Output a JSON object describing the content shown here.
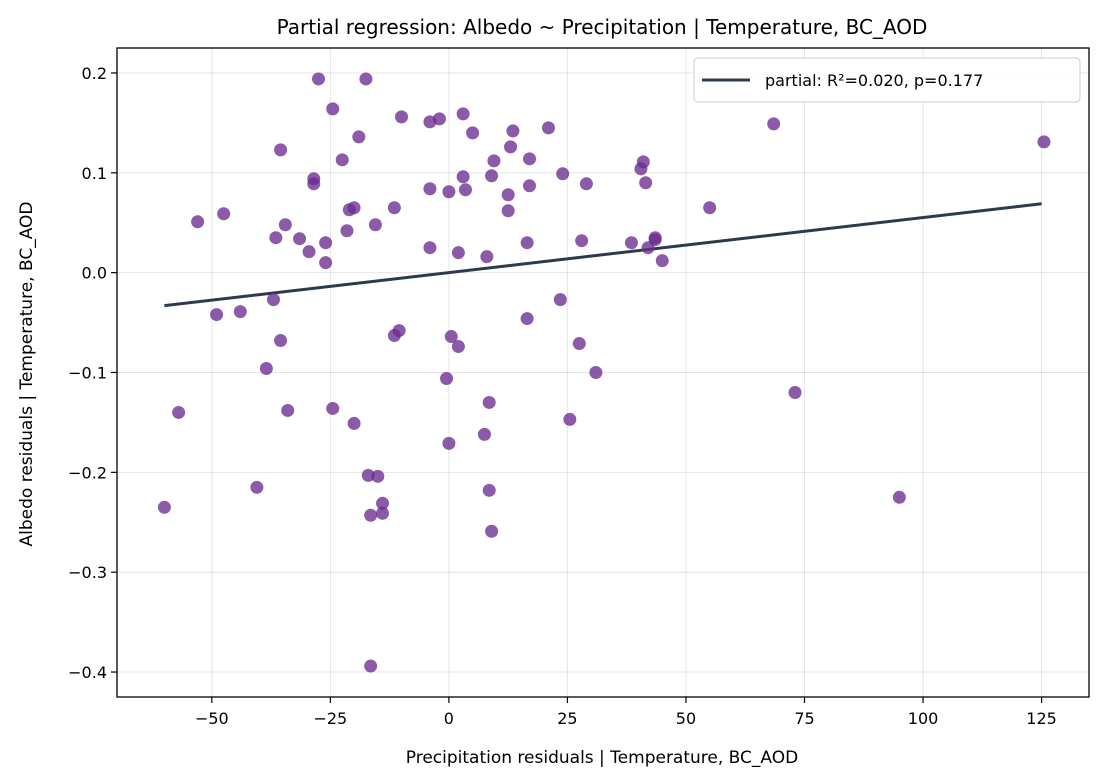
{
  "chart_data": {
    "type": "scatter",
    "title": "Partial regression: Albedo ~ Precipitation | Temperature, BC_AOD",
    "xlabel": "Precipitation residuals | Temperature, BC_AOD",
    "ylabel": "Albedo residuals | Temperature, BC_AOD",
    "xlim": [
      -70,
      135
    ],
    "ylim": [
      -0.425,
      0.225
    ],
    "xticks": [
      -50,
      -25,
      0,
      25,
      50,
      75,
      100,
      125
    ],
    "yticks": [
      -0.4,
      -0.3,
      -0.2,
      -0.1,
      0.0,
      0.1,
      0.2
    ],
    "xtick_labels": [
      "−50",
      "−25",
      "0",
      "25",
      "50",
      "75",
      "100",
      "125"
    ],
    "ytick_labels": [
      "−0.4",
      "−0.3",
      "−0.2",
      "−0.1",
      "0.0",
      "0.1",
      "0.2"
    ],
    "grid": true,
    "legend_position": "top-right",
    "point_color": "#6a2c8f",
    "line_color": "#2d3a4a",
    "fit_line": {
      "label": "partial: R²=0.020, p=0.177",
      "x": [
        -60,
        125
      ],
      "y": [
        -0.033,
        0.069
      ]
    },
    "points": [
      [
        -27.5,
        0.194
      ],
      [
        -17.5,
        0.194
      ],
      [
        -24.5,
        0.164
      ],
      [
        -19,
        0.136
      ],
      [
        -35.5,
        0.123
      ],
      [
        -22.5,
        0.113
      ],
      [
        -10,
        0.156
      ],
      [
        -4,
        0.151
      ],
      [
        -2,
        0.154
      ],
      [
        3,
        0.159
      ],
      [
        5,
        0.14
      ],
      [
        13.5,
        0.142
      ],
      [
        21,
        0.145
      ],
      [
        13,
        0.126
      ],
      [
        9.5,
        0.112
      ],
      [
        17,
        0.114
      ],
      [
        3,
        0.096
      ],
      [
        9,
        0.097
      ],
      [
        -28.5,
        0.094
      ],
      [
        -28.5,
        0.089
      ],
      [
        -4,
        0.084
      ],
      [
        0,
        0.081
      ],
      [
        3.5,
        0.083
      ],
      [
        12.5,
        0.078
      ],
      [
        17,
        0.087
      ],
      [
        24,
        0.099
      ],
      [
        29,
        0.089
      ],
      [
        41,
        0.111
      ],
      [
        40.5,
        0.104
      ],
      [
        41.5,
        0.09
      ],
      [
        -11.5,
        0.065
      ],
      [
        -21,
        0.063
      ],
      [
        -20,
        0.065
      ],
      [
        12.5,
        0.062
      ],
      [
        55,
        0.065
      ],
      [
        68.5,
        0.149
      ],
      [
        125.5,
        0.131
      ],
      [
        -53,
        0.051
      ],
      [
        -47.5,
        0.059
      ],
      [
        -34.5,
        0.048
      ],
      [
        -15.5,
        0.048
      ],
      [
        -36.5,
        0.035
      ],
      [
        -31.5,
        0.034
      ],
      [
        -21.5,
        0.042
      ],
      [
        -26,
        0.03
      ],
      [
        -29.5,
        0.021
      ],
      [
        -26,
        0.01
      ],
      [
        -4,
        0.025
      ],
      [
        2,
        0.02
      ],
      [
        8,
        0.016
      ],
      [
        16.5,
        0.03
      ],
      [
        28,
        0.032
      ],
      [
        38.5,
        0.03
      ],
      [
        43.5,
        0.035
      ],
      [
        43.5,
        0.033
      ],
      [
        42,
        0.025
      ],
      [
        45,
        0.012
      ],
      [
        -37,
        -0.027
      ],
      [
        -49,
        -0.042
      ],
      [
        -44,
        -0.039
      ],
      [
        23.5,
        -0.027
      ],
      [
        16.5,
        -0.046
      ],
      [
        -35.5,
        -0.068
      ],
      [
        -11.5,
        -0.063
      ],
      [
        -10.5,
        -0.058
      ],
      [
        0.5,
        -0.064
      ],
      [
        2,
        -0.074
      ],
      [
        27.5,
        -0.071
      ],
      [
        31,
        -0.1
      ],
      [
        -38.5,
        -0.096
      ],
      [
        -0.5,
        -0.106
      ],
      [
        73,
        -0.12
      ],
      [
        -57,
        -0.14
      ],
      [
        -34,
        -0.138
      ],
      [
        -24.5,
        -0.136
      ],
      [
        -20,
        -0.151
      ],
      [
        8.5,
        -0.13
      ],
      [
        25.5,
        -0.147
      ],
      [
        7.5,
        -0.162
      ],
      [
        0,
        -0.171
      ],
      [
        -17,
        -0.203
      ],
      [
        -15,
        -0.204
      ],
      [
        -40.5,
        -0.215
      ],
      [
        -14,
        -0.231
      ],
      [
        -16.5,
        -0.243
      ],
      [
        -14,
        -0.241
      ],
      [
        8.5,
        -0.218
      ],
      [
        9,
        -0.259
      ],
      [
        95,
        -0.225
      ],
      [
        -60,
        -0.235
      ],
      [
        -16.5,
        -0.394
      ]
    ]
  }
}
